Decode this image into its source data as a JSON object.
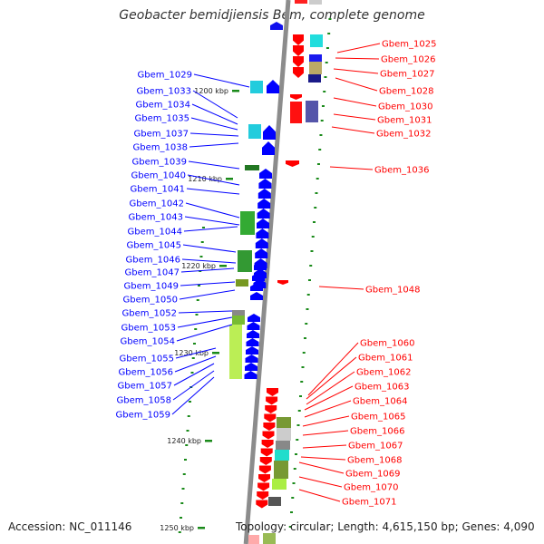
{
  "title": "Geobacter bemidjiensis Bem, complete genome",
  "footer": {
    "accession": "Accession: NC_011146",
    "stats": "Topology: circular; Length: 4,615,150 bp; Genes: 4,090"
  },
  "colors": {
    "forward_label": "#0000ff",
    "reverse_label": "#ff0000",
    "backbone": "#8c8c8c",
    "tick": "#1a8a1a"
  },
  "scale_ticks": [
    {
      "label": "1200 kbp"
    },
    {
      "label": "1210 kbp"
    },
    {
      "label": "1220 kbp"
    },
    {
      "label": "1230 kbp"
    },
    {
      "label": "1240 kbp"
    },
    {
      "label": "1250 kbp"
    }
  ],
  "left_genes": [
    "Gbem_1029",
    "Gbem_1033",
    "Gbem_1034",
    "Gbem_1035",
    "Gbem_1037",
    "Gbem_1038",
    "Gbem_1039",
    "Gbem_1040",
    "Gbem_1041",
    "Gbem_1042",
    "Gbem_1043",
    "Gbem_1044",
    "Gbem_1045",
    "Gbem_1046",
    "Gbem_1047",
    "Gbem_1049",
    "Gbem_1050",
    "Gbem_1052",
    "Gbem_1053",
    "Gbem_1054",
    "Gbem_1055",
    "Gbem_1056",
    "Gbem_1057",
    "Gbem_1058",
    "Gbem_1059"
  ],
  "right_genes": [
    "Gbem_1025",
    "Gbem_1026",
    "Gbem_1027",
    "Gbem_1028",
    "Gbem_1030",
    "Gbem_1031",
    "Gbem_1032",
    "Gbem_1036",
    "Gbem_1048",
    "Gbem_1060",
    "Gbem_1061",
    "Gbem_1062",
    "Gbem_1063",
    "Gbem_1064",
    "Gbem_1065",
    "Gbem_1066",
    "Gbem_1067",
    "Gbem_1068",
    "Gbem_1069",
    "Gbem_1070",
    "Gbem_1071"
  ]
}
